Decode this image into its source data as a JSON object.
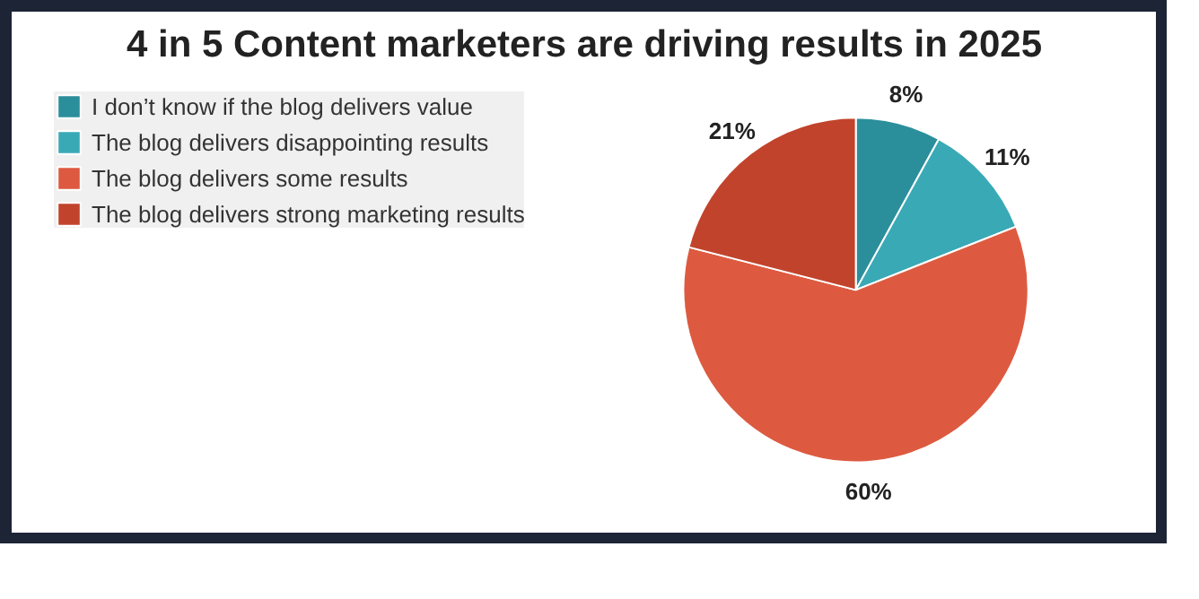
{
  "chart_data": {
    "type": "pie",
    "title": "4 in 5 Content marketers are driving results in 2025",
    "categories": [
      "I don’t know if the blog delivers value",
      "The blog delivers disappointing results",
      "The blog delivers some results",
      "The blog delivers strong marketing results"
    ],
    "values": [
      8,
      11,
      60,
      21
    ],
    "colors": [
      "#2b8f9b",
      "#3aa9b6",
      "#dd5a40",
      "#c2432c"
    ],
    "value_labels": [
      "8%",
      "11%",
      "60%",
      "21%"
    ],
    "legend": "top left"
  }
}
